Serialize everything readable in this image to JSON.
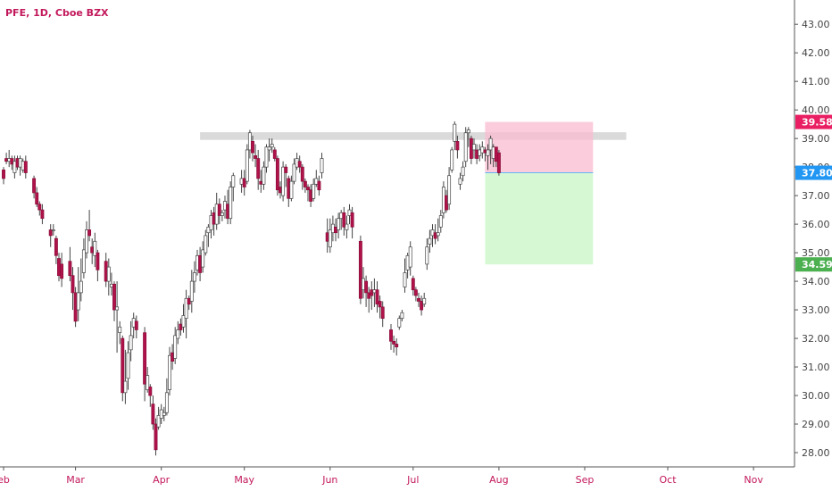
{
  "header": {
    "title": "PFE, 1D, Cboe BZX"
  },
  "chart_data": {
    "type": "candlestick",
    "symbol": "PFE",
    "timeframe": "1D",
    "exchange": "Cboe BZX",
    "y_ticks": [
      "28.00",
      "29.00",
      "30.00",
      "31.00",
      "32.00",
      "33.00",
      "34.00",
      "35.00",
      "36.00",
      "37.00",
      "38.00",
      "39.00",
      "40.00",
      "41.00",
      "42.00",
      "43.00"
    ],
    "ylim": [
      27.5,
      43.6
    ],
    "x_ticks": [
      {
        "label": "eb",
        "day": 0
      },
      {
        "label": "Mar",
        "day": 26
      },
      {
        "label": "Apr",
        "day": 57
      },
      {
        "label": "May",
        "day": 87
      },
      {
        "label": "Jun",
        "day": 118
      },
      {
        "label": "Jul",
        "day": 148
      },
      {
        "label": "Aug",
        "day": 179
      },
      {
        "label": "Sep",
        "day": 210
      },
      {
        "label": "Oct",
        "day": 240
      },
      {
        "label": "Nov",
        "day": 271
      }
    ],
    "price_labels": [
      {
        "value": "39.58",
        "price": 39.58,
        "color": "#e91e63"
      },
      {
        "value": "37.80",
        "price": 37.8,
        "color": "#2196f3"
      },
      {
        "value": "34.59",
        "price": 34.59,
        "color": "#4caf50"
      }
    ],
    "zones": {
      "resistance": {
        "from_day": 71,
        "to_day": 225,
        "low": 38.95,
        "high": 39.22,
        "color": "#d3d3d3"
      },
      "stop_zone": {
        "from_day": 174,
        "to_day": 213,
        "low": 37.8,
        "high": 39.58,
        "color": "#f8bbd0"
      },
      "target_zone": {
        "from_day": 174,
        "to_day": 213,
        "low": 34.59,
        "high": 37.8,
        "color": "#c8f7c5"
      },
      "entry_price": 37.8
    },
    "candles": [
      [
        0,
        37.9,
        37.6,
        37.4,
        38.0
      ],
      [
        1,
        38.3,
        38.2,
        38.1,
        38.5
      ],
      [
        2,
        38.2,
        38.3,
        38.0,
        38.6
      ],
      [
        3,
        38.3,
        38.1,
        37.9,
        38.4
      ],
      [
        4,
        37.8,
        38.2,
        37.6,
        38.4
      ],
      [
        5,
        38.3,
        38.0,
        37.9,
        38.4
      ],
      [
        6,
        38.0,
        38.3,
        37.7,
        38.4
      ],
      [
        7,
        37.9,
        38.2,
        37.8,
        38.3
      ],
      [
        8,
        38.2,
        37.8,
        37.6,
        38.4
      ],
      [
        11,
        37.6,
        37.1,
        36.9,
        37.7
      ],
      [
        12,
        37.1,
        36.7,
        36.6,
        37.3
      ],
      [
        13,
        36.7,
        36.5,
        36.3,
        36.8
      ],
      [
        14,
        36.5,
        36.2,
        36.0,
        36.7
      ],
      [
        17,
        35.8,
        35.6,
        35.2,
        36.0
      ],
      [
        18,
        35.8,
        35.8,
        35.6,
        36.0
      ],
      [
        19,
        35.5,
        34.9,
        34.6,
        35.6
      ],
      [
        20,
        34.8,
        34.2,
        34.0,
        35.0
      ],
      [
        21,
        34.6,
        34.1,
        33.8,
        35.0
      ],
      [
        24,
        34.7,
        34.2,
        34.0,
        35.2
      ],
      [
        25,
        34.2,
        33.6,
        33.0,
        34.5
      ],
      [
        26,
        33.6,
        32.6,
        32.4,
        33.8
      ],
      [
        27,
        33.0,
        33.6,
        32.6,
        34.5
      ],
      [
        28,
        33.6,
        34.0,
        33.3,
        34.8
      ],
      [
        29,
        34.3,
        35.1,
        34.1,
        35.5
      ],
      [
        30,
        35.0,
        35.8,
        34.8,
        36.1
      ],
      [
        31,
        35.8,
        35.6,
        35.4,
        36.5
      ],
      [
        32,
        35.2,
        35.0,
        34.6,
        35.5
      ],
      [
        33,
        34.9,
        35.4,
        34.5,
        35.7
      ],
      [
        34,
        35.0,
        34.4,
        34.0,
        35.1
      ],
      [
        37,
        34.7,
        34.0,
        33.8,
        35.0
      ],
      [
        38,
        34.0,
        34.5,
        33.5,
        34.8
      ],
      [
        39,
        33.8,
        33.9,
        33.5,
        34.3
      ],
      [
        40,
        33.9,
        33.0,
        32.6,
        34.0
      ],
      [
        41,
        33.0,
        33.1,
        31.5,
        34.0
      ],
      [
        42,
        32.2,
        32.4,
        31.8,
        32.6
      ],
      [
        43,
        32.0,
        30.1,
        29.8,
        32.1
      ],
      [
        44,
        30.1,
        30.5,
        29.7,
        31.6
      ],
      [
        45,
        30.6,
        31.5,
        30.2,
        31.9
      ],
      [
        46,
        31.6,
        32.1,
        31.2,
        32.6
      ],
      [
        47,
        32.4,
        32.7,
        32.0,
        32.9
      ],
      [
        48,
        32.6,
        32.3,
        32.0,
        32.8
      ],
      [
        51,
        32.2,
        30.4,
        29.8,
        32.4
      ],
      [
        52,
        30.2,
        30.7,
        30.1,
        31.0
      ],
      [
        53,
        30.3,
        30.0,
        29.6,
        30.4
      ],
      [
        54,
        29.7,
        29.0,
        28.8,
        30.0
      ],
      [
        55,
        29.0,
        28.1,
        27.9,
        29.2
      ],
      [
        56,
        28.9,
        29.3,
        28.8,
        29.6
      ],
      [
        57,
        29.2,
        29.5,
        29.0,
        29.7
      ],
      [
        58,
        29.3,
        29.4,
        29.1,
        29.6
      ],
      [
        59,
        29.4,
        30.1,
        29.3,
        30.6
      ],
      [
        60,
        30.2,
        31.4,
        30.0,
        31.7
      ],
      [
        61,
        31.5,
        31.2,
        30.9,
        31.8
      ],
      [
        62,
        31.3,
        32.1,
        31.1,
        32.4
      ],
      [
        63,
        32.0,
        32.3,
        31.8,
        32.6
      ],
      [
        64,
        32.5,
        32.3,
        32.1,
        32.7
      ],
      [
        65,
        32.4,
        32.8,
        32.2,
        33.2
      ],
      [
        66,
        32.7,
        33.4,
        32.0,
        33.7
      ],
      [
        67,
        33.4,
        33.2,
        33.0,
        33.5
      ],
      [
        68,
        33.3,
        34.0,
        32.9,
        34.4
      ],
      [
        69,
        34.0,
        34.3,
        33.6,
        34.7
      ],
      [
        70,
        34.4,
        34.9,
        34.2,
        35.1
      ],
      [
        71,
        34.9,
        34.3,
        34.0,
        35.2
      ],
      [
        72,
        34.5,
        35.1,
        34.3,
        35.4
      ],
      [
        73,
        35.0,
        35.6,
        34.9,
        35.8
      ],
      [
        74,
        35.7,
        35.9,
        35.2,
        36.0
      ],
      [
        75,
        35.8,
        36.3,
        35.5,
        36.5
      ],
      [
        76,
        36.4,
        36.0,
        35.6,
        36.6
      ],
      [
        77,
        36.0,
        36.7,
        35.8,
        37.1
      ],
      [
        78,
        36.7,
        36.3,
        36.0,
        36.9
      ],
      [
        79,
        36.3,
        36.4,
        36.1,
        36.5
      ],
      [
        80,
        36.5,
        36.8,
        36.2,
        37.0
      ],
      [
        81,
        36.7,
        36.2,
        36.0,
        37.2
      ],
      [
        82,
        36.2,
        37.3,
        36.0,
        37.5
      ],
      [
        83,
        37.3,
        37.7,
        36.8,
        37.8
      ],
      [
        86,
        37.4,
        37.6,
        37.1,
        37.9
      ],
      [
        87,
        37.6,
        37.3,
        37.0,
        37.9
      ],
      [
        88,
        37.5,
        38.6,
        37.4,
        38.8
      ],
      [
        89,
        38.6,
        39.2,
        38.3,
        39.3
      ],
      [
        90,
        38.9,
        38.5,
        38.2,
        39.1
      ],
      [
        91,
        38.4,
        38.3,
        38.0,
        38.8
      ],
      [
        92,
        38.3,
        37.6,
        37.2,
        38.6
      ],
      [
        93,
        37.5,
        37.4,
        37.1,
        37.9
      ],
      [
        94,
        37.4,
        38.0,
        37.2,
        38.2
      ],
      [
        95,
        38.0,
        38.7,
        37.8,
        38.8
      ],
      [
        96,
        38.6,
        38.7,
        38.2,
        39.0
      ],
      [
        97,
        38.7,
        38.8,
        38.5,
        39.0
      ],
      [
        98,
        38.6,
        38.3,
        38.2,
        38.7
      ],
      [
        99,
        38.3,
        37.2,
        37.0,
        38.4
      ],
      [
        100,
        37.3,
        37.1,
        36.9,
        37.5
      ],
      [
        101,
        37.0,
        38.0,
        36.8,
        38.2
      ],
      [
        102,
        38.0,
        37.8,
        37.3,
        38.1
      ],
      [
        103,
        37.6,
        36.9,
        36.6,
        37.7
      ],
      [
        104,
        36.9,
        37.5,
        36.8,
        37.7
      ],
      [
        105,
        37.5,
        38.1,
        37.4,
        38.3
      ],
      [
        106,
        38.0,
        38.3,
        37.9,
        38.5
      ],
      [
        107,
        38.2,
        38.0,
        37.8,
        38.4
      ],
      [
        108,
        38.0,
        37.5,
        37.2,
        38.1
      ],
      [
        109,
        37.5,
        37.3,
        37.1,
        37.6
      ],
      [
        110,
        37.3,
        37.2,
        36.8,
        37.4
      ],
      [
        111,
        37.2,
        36.8,
        36.6,
        37.4
      ],
      [
        112,
        36.9,
        37.4,
        36.8,
        37.6
      ],
      [
        113,
        37.4,
        37.6,
        37.3,
        37.9
      ],
      [
        114,
        37.5,
        37.2,
        37.0,
        37.7
      ],
      [
        115,
        37.8,
        38.3,
        37.6,
        38.5
      ],
      [
        117,
        35.7,
        35.4,
        35.0,
        36.2
      ],
      [
        118,
        35.2,
        35.8,
        35.0,
        36.2
      ],
      [
        119,
        35.7,
        36.0,
        35.4,
        36.3
      ],
      [
        120,
        35.9,
        35.7,
        35.4,
        36.2
      ],
      [
        121,
        35.8,
        36.2,
        35.5,
        36.4
      ],
      [
        122,
        36.2,
        36.4,
        35.8,
        36.5
      ],
      [
        123,
        36.4,
        35.9,
        35.6,
        36.6
      ],
      [
        124,
        35.8,
        36.0,
        35.5,
        36.3
      ],
      [
        125,
        36.3,
        36.5,
        36.0,
        36.7
      ],
      [
        126,
        36.4,
        35.9,
        35.5,
        36.6
      ],
      [
        129,
        35.4,
        33.4,
        33.2,
        35.6
      ],
      [
        130,
        33.7,
        34.1,
        33.4,
        34.5
      ],
      [
        131,
        34.0,
        33.6,
        33.1,
        34.2
      ],
      [
        132,
        33.6,
        33.4,
        32.9,
        33.8
      ],
      [
        133,
        33.7,
        33.5,
        33.0,
        34.0
      ],
      [
        134,
        33.6,
        33.7,
        33.1,
        34.1
      ],
      [
        135,
        33.7,
        33.2,
        32.9,
        34.0
      ],
      [
        136,
        33.3,
        33.1,
        32.7,
        33.5
      ],
      [
        137,
        33.1,
        32.7,
        32.4,
        33.3
      ],
      [
        140,
        32.3,
        31.9,
        31.6,
        32.5
      ],
      [
        141,
        31.9,
        31.8,
        31.5,
        32.1
      ],
      [
        142,
        31.8,
        31.7,
        31.4,
        32.0
      ],
      [
        143,
        32.4,
        32.7,
        32.3,
        32.8
      ],
      [
        144,
        32.7,
        32.9,
        32.6,
        33.0
      ],
      [
        145,
        33.8,
        34.3,
        33.6,
        34.8
      ],
      [
        146,
        34.4,
        34.9,
        34.1,
        35.0
      ],
      [
        147,
        34.5,
        35.2,
        34.2,
        35.4
      ],
      [
        148,
        34.1,
        33.7,
        33.5,
        34.2
      ],
      [
        149,
        33.7,
        33.5,
        33.3,
        33.8
      ],
      [
        150,
        33.4,
        33.3,
        33.1,
        33.6
      ],
      [
        151,
        33.3,
        33.0,
        32.8,
        33.5
      ],
      [
        152,
        33.2,
        33.4,
        33.1,
        33.6
      ],
      [
        153,
        34.6,
        35.2,
        34.4,
        35.5
      ],
      [
        154,
        35.3,
        35.5,
        35.0,
        35.8
      ],
      [
        155,
        35.6,
        35.8,
        35.2,
        36.0
      ],
      [
        156,
        35.7,
        35.5,
        35.3,
        36.0
      ],
      [
        157,
        35.6,
        35.7,
        35.4,
        36.2
      ],
      [
        158,
        35.9,
        36.3,
        35.7,
        36.5
      ],
      [
        159,
        36.4,
        37.3,
        36.2,
        37.5
      ],
      [
        160,
        37.0,
        36.5,
        36.4,
        37.2
      ],
      [
        161,
        36.7,
        37.7,
        36.5,
        38.0
      ],
      [
        162,
        37.9,
        38.6,
        37.8,
        38.7
      ],
      [
        163,
        38.9,
        39.5,
        38.6,
        39.6
      ],
      [
        164,
        38.9,
        38.6,
        38.3,
        39.1
      ],
      [
        165,
        37.4,
        37.6,
        37.2,
        37.8
      ],
      [
        166,
        37.7,
        38.0,
        37.5,
        38.2
      ],
      [
        167,
        38.2,
        39.2,
        38.0,
        39.4
      ],
      [
        168,
        39.2,
        39.3,
        38.7,
        39.4
      ],
      [
        169,
        39.0,
        38.3,
        38.1,
        39.1
      ],
      [
        170,
        38.6,
        38.8,
        38.3,
        39.0
      ],
      [
        171,
        38.6,
        38.3,
        38.1,
        38.8
      ],
      [
        172,
        38.4,
        38.6,
        38.2,
        38.8
      ],
      [
        173,
        38.5,
        38.7,
        38.3,
        38.9
      ],
      [
        174,
        38.6,
        38.5,
        38.2,
        38.7
      ],
      [
        175,
        38.4,
        38.6,
        37.9,
        38.8
      ],
      [
        176,
        38.6,
        39.0,
        38.1,
        39.1
      ],
      [
        177,
        38.3,
        38.7,
        38.0,
        38.8
      ],
      [
        178,
        38.7,
        38.2,
        38.0,
        38.7
      ],
      [
        179,
        38.5,
        37.8,
        37.7,
        38.6
      ]
    ]
  }
}
